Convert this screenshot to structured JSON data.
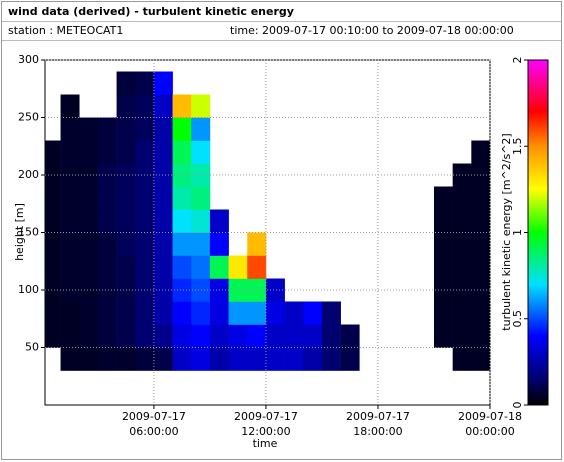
{
  "chart_data": {
    "type": "heatmap",
    "title": "wind data (derived) - turbulent kinetic energy",
    "station": "station : METEOCAT1",
    "time_range": "time: 2009-07-17 00:10:00 to 2009-07-18 00:00:00",
    "xlabel": "time",
    "ylabel": "height [m]",
    "zlabel": "turbulent kinetic energy [m^2/s^2]",
    "xlim": [
      "2009-07-17 00:10:00",
      "2009-07-18 00:00:00"
    ],
    "xticks": [
      "2009-07-17 06:00:00",
      "2009-07-17 12:00:00",
      "2009-07-17 18:00:00",
      "2009-07-18 00:00:00"
    ],
    "ylim": [
      0,
      300
    ],
    "yticks": [
      50,
      100,
      150,
      200,
      250,
      300
    ],
    "zlim": [
      0,
      2
    ],
    "zticks": [
      0,
      0.5,
      1,
      1.5,
      2
    ],
    "grid": true,
    "colorscale": [
      [
        0,
        "#000000"
      ],
      [
        0.15,
        "#000070"
      ],
      [
        0.4,
        "#0000ff"
      ],
      [
        0.7,
        "#00e0ff"
      ],
      [
        1.0,
        "#00ff00"
      ],
      [
        1.25,
        "#ffff00"
      ],
      [
        1.5,
        "#ff9000"
      ],
      [
        1.7,
        "#ff0000"
      ],
      [
        2,
        "#ff00ff"
      ]
    ],
    "xbins": [
      "2009-07-17 00:10:00",
      "2009-07-17 01:00:00",
      "2009-07-17 02:00:00",
      "2009-07-17 03:00:00",
      "2009-07-17 04:00:00",
      "2009-07-17 05:00:00",
      "2009-07-17 06:00:00",
      "2009-07-17 07:00:00",
      "2009-07-17 08:00:00",
      "2009-07-17 09:00:00",
      "2009-07-17 10:00:00",
      "2009-07-17 11:00:00",
      "2009-07-17 12:00:00",
      "2009-07-17 13:00:00",
      "2009-07-17 14:00:00",
      "2009-07-17 15:00:00",
      "2009-07-17 16:00:00",
      "2009-07-17 17:00:00",
      "2009-07-17 18:00:00",
      "2009-07-17 19:00:00",
      "2009-07-17 20:00:00",
      "2009-07-17 21:00:00",
      "2009-07-17 22:00:00",
      "2009-07-17 23:00:00",
      "2009-07-18 00:00:00"
    ],
    "ybins": [
      30,
      50,
      70,
      90,
      110,
      130,
      150,
      170,
      190,
      210,
      230,
      250,
      270,
      290
    ],
    "z": [
      [
        null,
        0.05,
        0.05,
        0.05,
        0.05,
        0.05,
        0.05,
        0.05,
        0.05,
        0.05,
        null,
        null,
        null
      ],
      [
        0.05,
        0.05,
        0.05,
        0.06,
        0.06,
        0.06,
        0.06,
        0.06,
        0.06,
        0.06,
        0.06,
        0.05,
        null
      ],
      [
        0.05,
        0.06,
        0.06,
        0.06,
        0.06,
        0.06,
        0.06,
        0.06,
        0.06,
        0.06,
        0.06,
        null,
        null
      ],
      [
        0.06,
        0.08,
        0.08,
        0.08,
        0.08,
        0.08,
        0.1,
        0.1,
        0.1,
        0.08,
        0.08,
        null,
        null
      ],
      [
        0.06,
        0.1,
        0.1,
        0.1,
        0.1,
        0.12,
        0.12,
        0.12,
        0.12,
        0.1,
        0.1,
        0.1,
        0.08
      ],
      [
        0.08,
        0.15,
        0.15,
        0.15,
        0.15,
        0.15,
        0.15,
        0.15,
        0.15,
        0.15,
        0.12,
        0.12,
        0.1
      ],
      [
        0.1,
        0.2,
        0.25,
        0.25,
        0.25,
        0.25,
        0.25,
        0.25,
        0.25,
        0.25,
        0.25,
        0.3,
        0.4
      ],
      [
        0.3,
        0.35,
        0.4,
        0.45,
        0.5,
        0.6,
        0.7,
        0.8,
        0.85,
        0.9,
        1.0,
        1.4,
        null
      ],
      [
        0.35,
        0.4,
        0.45,
        0.5,
        0.55,
        0.6,
        0.75,
        0.85,
        0.8,
        0.7,
        0.6,
        1.2,
        null
      ],
      [
        0.25,
        0.3,
        0.35,
        0.35,
        0.9,
        0.4,
        0.3,
        null,
        null,
        null,
        null,
        null,
        null
      ],
      [
        0.3,
        0.35,
        0.6,
        0.9,
        1.3,
        null,
        null,
        null,
        null,
        null,
        null,
        null,
        null
      ],
      [
        0.3,
        0.4,
        0.6,
        0.9,
        1.6,
        1.4,
        null,
        null,
        null,
        null,
        null,
        null,
        null
      ],
      [
        0.3,
        0.3,
        0.35,
        0.3,
        null,
        null,
        null,
        null,
        null,
        null,
        null,
        null,
        null
      ],
      [
        0.3,
        0.3,
        0.3,
        null,
        null,
        null,
        null,
        null,
        null,
        null,
        null,
        null,
        null
      ],
      [
        0.25,
        0.3,
        0.4,
        null,
        null,
        null,
        null,
        null,
        null,
        null,
        null,
        null,
        null
      ],
      [
        0.15,
        0.15,
        0.15,
        null,
        null,
        null,
        null,
        null,
        null,
        null,
        null,
        null,
        null
      ],
      [
        0.1,
        0.1,
        null,
        null,
        null,
        null,
        null,
        null,
        null,
        null,
        null,
        null,
        null
      ],
      [
        null,
        null,
        null,
        null,
        null,
        null,
        null,
        null,
        null,
        null,
        null,
        null,
        null
      ],
      [
        null,
        null,
        null,
        null,
        null,
        null,
        null,
        null,
        null,
        null,
        null,
        null,
        null
      ],
      [
        null,
        null,
        null,
        null,
        null,
        null,
        null,
        null,
        null,
        null,
        null,
        null,
        null
      ],
      [
        null,
        null,
        null,
        null,
        null,
        null,
        null,
        null,
        null,
        null,
        null,
        null,
        null
      ],
      [
        null,
        0.05,
        0.05,
        0.05,
        0.05,
        0.05,
        0.05,
        0.05,
        null,
        null,
        null,
        null,
        null
      ],
      [
        0.05,
        0.05,
        0.05,
        0.05,
        0.05,
        0.05,
        0.05,
        0.05,
        0.05,
        null,
        null,
        null,
        null
      ],
      [
        0.05,
        0.05,
        0.05,
        0.05,
        0.05,
        0.05,
        0.05,
        0.05,
        0.05,
        0.05,
        null,
        null,
        null
      ]
    ]
  }
}
